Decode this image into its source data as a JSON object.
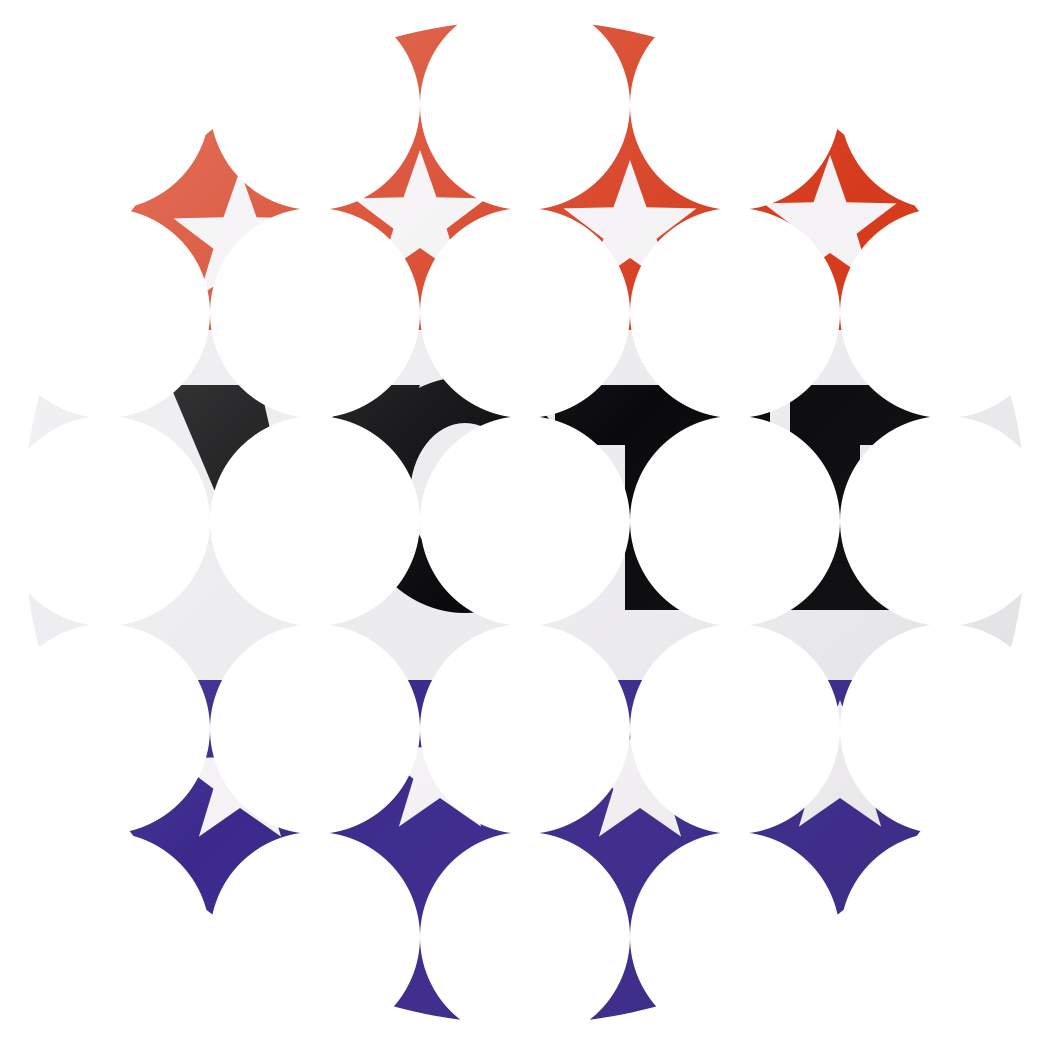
{
  "image": {
    "subject": "vote-button",
    "lettering": "VOTE",
    "colors": {
      "background": "#ffffff",
      "red_band": "#d63a1c",
      "red_band_dark": "#b52d14",
      "white_band": "#ecebee",
      "letter": "#0a0a0c",
      "blue_band": "#3b2a8c",
      "blue_band_dark": "#2a1e6e",
      "star": "#f4f2f4",
      "mask": "#ffffff"
    },
    "mask_grid": {
      "rows": 5,
      "pattern": "circular-cutouts"
    }
  }
}
